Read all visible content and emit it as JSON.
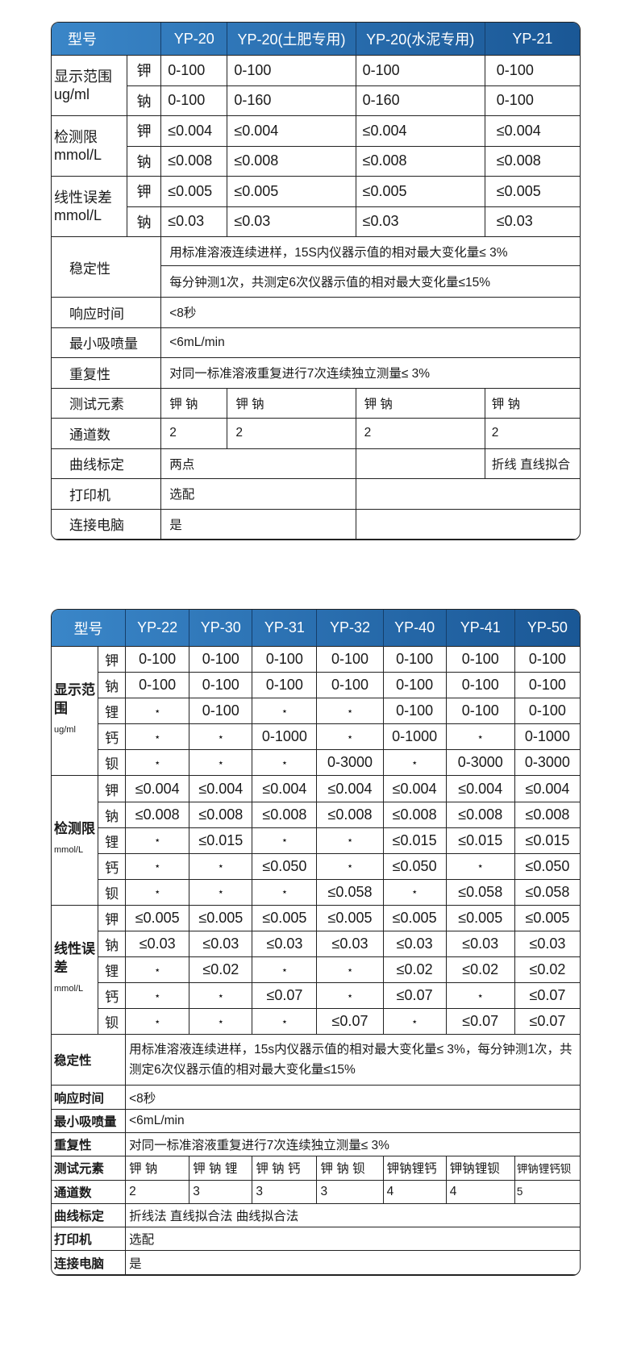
{
  "table1": {
    "header": {
      "model_label": "型号",
      "models": [
        "YP-20",
        "YP-20(土肥专用)",
        "YP-20(水泥专用)",
        "YP-21"
      ]
    },
    "groups": [
      {
        "label": "显示范围",
        "unit": "ug/ml",
        "rows": [
          {
            "element": "钾",
            "values": [
              "0-100",
              "0-100",
              "0-100",
              "0-100"
            ]
          },
          {
            "element": "钠",
            "values": [
              "0-100",
              "0-160",
              "0-160",
              "0-100"
            ]
          }
        ]
      },
      {
        "label": "检测限",
        "unit": "mmol/L",
        "rows": [
          {
            "element": "钾",
            "values": [
              "≤0.004",
              "≤0.004",
              "≤0.004",
              "≤0.004"
            ]
          },
          {
            "element": "钠",
            "values": [
              "≤0.008",
              "≤0.008",
              "≤0.008",
              "≤0.008"
            ]
          }
        ]
      },
      {
        "label": "线性误差",
        "unit": "mmol/L",
        "rows": [
          {
            "element": "钾",
            "values": [
              "≤0.005",
              "≤0.005",
              "≤0.005",
              "≤0.005"
            ]
          },
          {
            "element": "钠",
            "values": [
              "≤0.03",
              "≤0.03",
              "≤0.03",
              "≤0.03"
            ]
          }
        ]
      }
    ],
    "stability": {
      "label": "稳定性",
      "lines": [
        "用标准溶液连续进样，15S内仪器示值的相对最大变化量≤ 3%",
        "每分钟测1次，共测定6次仪器示值的相对最大变化量≤15%"
      ]
    },
    "rows": [
      {
        "label": "响应时间",
        "values": [
          "<8秒"
        ]
      },
      {
        "label": "最小吸喷量",
        "values": [
          "<6mL/min"
        ]
      },
      {
        "label": "重复性",
        "values": [
          "对同一标准溶液重复进行7次连续独立测量≤ 3%"
        ]
      },
      {
        "label": "测试元素",
        "values": [
          "钾 钠",
          "钾 钠",
          "钾 钠",
          "钾 钠"
        ]
      },
      {
        "label": "通道数",
        "values": [
          "2",
          "2",
          "2",
          "2"
        ]
      },
      {
        "label": "曲线标定",
        "values": [
          "两点",
          "",
          "折线 直线拟合"
        ]
      },
      {
        "label": "打印机",
        "values": [
          "选配",
          ""
        ]
      },
      {
        "label": "连接电脑",
        "values": [
          "是",
          ""
        ]
      }
    ]
  },
  "table2": {
    "header": {
      "model_label": "型号",
      "models": [
        "YP-22",
        "YP-30",
        "YP-31",
        "YP-32",
        "YP-40",
        "YP-41",
        "YP-50"
      ]
    },
    "groups": [
      {
        "label": "显示范围",
        "unit": "ug/ml",
        "rows": [
          {
            "element": "钾",
            "values": [
              "0-100",
              "0-100",
              "0-100",
              "0-100",
              "0-100",
              "0-100",
              "0-100"
            ]
          },
          {
            "element": "钠",
            "values": [
              "0-100",
              "0-100",
              "0-100",
              "0-100",
              "0-100",
              "0-100",
              "0-100"
            ]
          },
          {
            "element": "锂",
            "values": [
              "⋆",
              "0-100",
              "⋆",
              "⋆",
              "0-100",
              "0-100",
              "0-100"
            ]
          },
          {
            "element": "钙",
            "values": [
              "⋆",
              "⋆",
              "0-1000",
              "⋆",
              "0-1000",
              "⋆",
              "0-1000"
            ]
          },
          {
            "element": "钡",
            "values": [
              "⋆",
              "⋆",
              "⋆",
              "0-3000",
              "⋆",
              "0-3000",
              "0-3000"
            ]
          }
        ]
      },
      {
        "label": "检测限",
        "unit": "mmol/L",
        "rows": [
          {
            "element": "钾",
            "values": [
              "≤0.004",
              "≤0.004",
              "≤0.004",
              "≤0.004",
              "≤0.004",
              "≤0.004",
              "≤0.004"
            ]
          },
          {
            "element": "钠",
            "values": [
              "≤0.008",
              "≤0.008",
              "≤0.008",
              "≤0.008",
              "≤0.008",
              "≤0.008",
              "≤0.008"
            ]
          },
          {
            "element": "锂",
            "values": [
              "⋆",
              "≤0.015",
              "⋆",
              "⋆",
              "≤0.015",
              "≤0.015",
              "≤0.015"
            ]
          },
          {
            "element": "钙",
            "values": [
              "⋆",
              "⋆",
              "≤0.050",
              "⋆",
              "≤0.050",
              "⋆",
              "≤0.050"
            ]
          },
          {
            "element": "钡",
            "values": [
              "⋆",
              "⋆",
              "⋆",
              "≤0.058",
              "⋆",
              "≤0.058",
              "≤0.058"
            ]
          }
        ]
      },
      {
        "label": "线性误差",
        "unit": "mmol/L",
        "rows": [
          {
            "element": "钾",
            "values": [
              "≤0.005",
              "≤0.005",
              "≤0.005",
              "≤0.005",
              "≤0.005",
              "≤0.005",
              "≤0.005"
            ]
          },
          {
            "element": "钠",
            "values": [
              "≤0.03",
              "≤0.03",
              "≤0.03",
              "≤0.03",
              "≤0.03",
              "≤0.03",
              "≤0.03"
            ]
          },
          {
            "element": "锂",
            "values": [
              "⋆",
              "≤0.02",
              "⋆",
              "⋆",
              "≤0.02",
              "≤0.02",
              "≤0.02"
            ]
          },
          {
            "element": "钙",
            "values": [
              "⋆",
              "⋆",
              "≤0.07",
              "⋆",
              "≤0.07",
              "⋆",
              "≤0.07"
            ]
          },
          {
            "element": "钡",
            "values": [
              "⋆",
              "⋆",
              "⋆",
              "≤0.07",
              "⋆",
              "≤0.07",
              "≤0.07"
            ]
          }
        ]
      }
    ],
    "stability": {
      "label": "稳定性",
      "text": "用标准溶液连续进样，15s内仪器示值的相对最大变化量≤ 3%，每分钟测1次，共测定6次仪器示值的相对最大变化量≤15%"
    },
    "rows": [
      {
        "label": "响应时间",
        "values": [
          "<8秒"
        ]
      },
      {
        "label": "最小吸喷量",
        "values": [
          "<6mL/min"
        ]
      },
      {
        "label": "重复性",
        "values": [
          "对同一标准溶液重复进行7次连续独立测量≤ 3%"
        ]
      },
      {
        "label": "测试元素",
        "values": [
          "钾 钠",
          "钾 钠 锂",
          "钾 钠 钙",
          "钾 钠 钡",
          "钾钠锂钙",
          "钾钠锂钡",
          "钾钠锂钙钡"
        ]
      },
      {
        "label": "通道数",
        "values": [
          "2",
          "3",
          "3",
          "3",
          "4",
          "4",
          "5"
        ]
      },
      {
        "label": "曲线标定",
        "values": [
          "折线法  直线拟合法  曲线拟合法"
        ]
      },
      {
        "label": "打印机",
        "values": [
          "选配"
        ]
      },
      {
        "label": "连接电脑",
        "values": [
          "是"
        ]
      }
    ]
  },
  "colors": {
    "header_start": "#3a86c8",
    "header_end": "#1a5795",
    "header_text": "#ffffff",
    "border": "#222222"
  }
}
